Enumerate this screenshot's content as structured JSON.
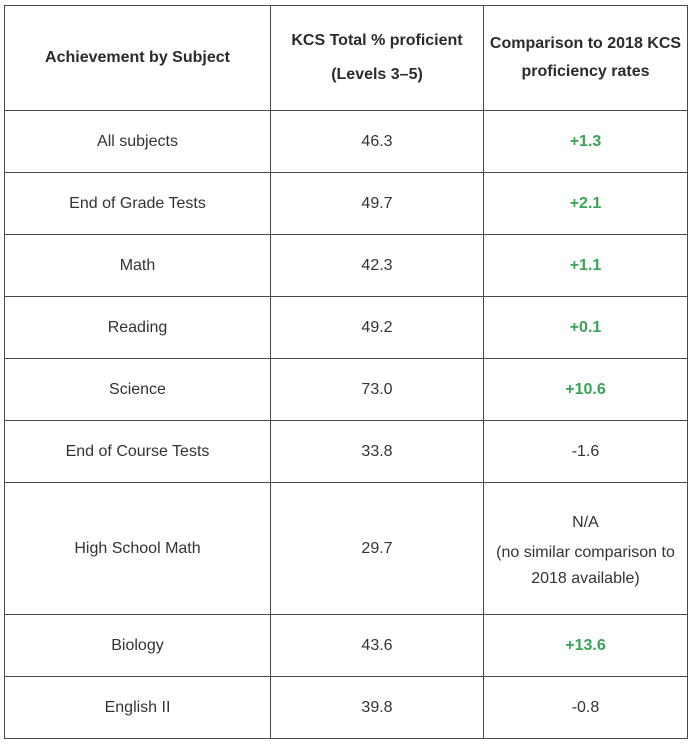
{
  "table": {
    "headers": [
      "Achievement by Subject",
      [
        "KCS Total % proficient",
        "(Levels 3–5)"
      ],
      "Comparison to 2018 KCS proficiency rates"
    ],
    "rows": [
      {
        "subject": "All subjects",
        "proficient": "46.3",
        "comparison": "+1.3",
        "positive": true
      },
      {
        "subject": "End of Grade Tests",
        "proficient": "49.7",
        "comparison": "+2.1",
        "positive": true
      },
      {
        "subject": "Math",
        "proficient": "42.3",
        "comparison": "+1.1",
        "positive": true
      },
      {
        "subject": "Reading",
        "proficient": "49.2",
        "comparison": "+0.1",
        "positive": true
      },
      {
        "subject": "Science",
        "proficient": "73.0",
        "comparison": "+10.6",
        "positive": true
      },
      {
        "subject": "End of Course Tests",
        "proficient": "33.8",
        "comparison": "-1.6",
        "positive": false
      },
      {
        "subject": "High School Math",
        "proficient": "29.7",
        "comparison": "N/A",
        "comparison_note": "(no similar comparison to 2018 available)",
        "positive": false
      },
      {
        "subject": "Biology",
        "proficient": "43.6",
        "comparison": "+13.6",
        "positive": true
      },
      {
        "subject": "English II",
        "proficient": "39.8",
        "comparison": "-0.8",
        "positive": false
      }
    ],
    "colors": {
      "positive": "#3aa356",
      "text": "#333333",
      "border": "#4a4a4a"
    }
  }
}
